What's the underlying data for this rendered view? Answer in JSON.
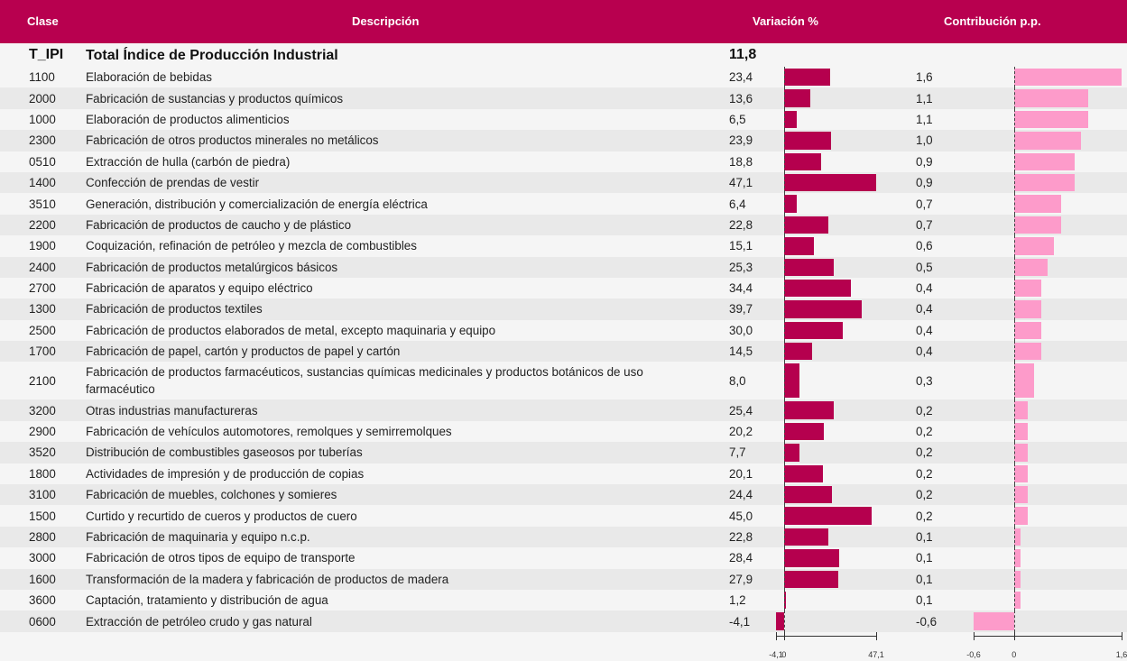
{
  "header": {
    "clase": "Clase",
    "descripcion": "Descripción",
    "variacion": "Variación %",
    "contribucion": "Contribución p.p."
  },
  "total": {
    "clase": "T_IPI",
    "descripcion": "Total Índice de Producción Industrial",
    "variacion": {
      "value": 11.8,
      "label": "11,8"
    }
  },
  "table": {
    "rows": [
      [
        "1100",
        "Elaboración de bebidas",
        {
          "value": 23.4,
          "label": "23,4"
        },
        {
          "value": 1.6,
          "label": "1,6"
        }
      ],
      [
        "2000",
        "Fabricación de sustancias y productos químicos",
        {
          "value": 13.6,
          "label": "13,6"
        },
        {
          "value": 1.1,
          "label": "1,1"
        }
      ],
      [
        "1000",
        "Elaboración de productos alimenticios",
        {
          "value": 6.5,
          "label": "6,5"
        },
        {
          "value": 1.1,
          "label": "1,1"
        }
      ],
      [
        "2300",
        "Fabricación de otros productos minerales no metálicos",
        {
          "value": 23.9,
          "label": "23,9"
        },
        {
          "value": 1.0,
          "label": "1,0"
        }
      ],
      [
        "0510",
        "Extracción de hulla (carbón de piedra)",
        {
          "value": 18.8,
          "label": "18,8"
        },
        {
          "value": 0.9,
          "label": "0,9"
        }
      ],
      [
        "1400",
        "Confección de prendas de vestir",
        {
          "value": 47.1,
          "label": "47,1"
        },
        {
          "value": 0.9,
          "label": "0,9"
        }
      ],
      [
        "3510",
        "Generación, distribución y comercialización de energía eléctrica",
        {
          "value": 6.4,
          "label": "6,4"
        },
        {
          "value": 0.7,
          "label": "0,7"
        }
      ],
      [
        "2200",
        "Fabricación de productos de caucho y de plástico",
        {
          "value": 22.8,
          "label": "22,8"
        },
        {
          "value": 0.7,
          "label": "0,7"
        }
      ],
      [
        "1900",
        "Coquización, refinación de petróleo y mezcla de combustibles",
        {
          "value": 15.1,
          "label": "15,1"
        },
        {
          "value": 0.6,
          "label": "0,6"
        }
      ],
      [
        "2400",
        "Fabricación de productos metalúrgicos básicos",
        {
          "value": 25.3,
          "label": "25,3"
        },
        {
          "value": 0.5,
          "label": "0,5"
        }
      ],
      [
        "2700",
        "Fabricación de aparatos y equipo eléctrico",
        {
          "value": 34.4,
          "label": "34,4"
        },
        {
          "value": 0.4,
          "label": "0,4"
        }
      ],
      [
        "1300",
        "Fabricación de productos textiles",
        {
          "value": 39.7,
          "label": "39,7"
        },
        {
          "value": 0.4,
          "label": "0,4"
        }
      ],
      [
        "2500",
        "Fabricación de productos elaborados de metal, excepto maquinaria y equipo",
        {
          "value": 30.0,
          "label": "30,0"
        },
        {
          "value": 0.4,
          "label": "0,4"
        }
      ],
      [
        "1700",
        "Fabricación de papel, cartón y productos de papel y cartón",
        {
          "value": 14.5,
          "label": "14,5"
        },
        {
          "value": 0.4,
          "label": "0,4"
        }
      ],
      [
        "2100",
        "Fabricación de productos farmacéuticos, sustancias químicas medicinales y productos botánicos de uso farmacéutico",
        {
          "value": 8.0,
          "label": "8,0"
        },
        {
          "value": 0.3,
          "label": "0,3"
        }
      ],
      [
        "3200",
        "Otras industrias manufactureras",
        {
          "value": 25.4,
          "label": "25,4"
        },
        {
          "value": 0.2,
          "label": "0,2"
        }
      ],
      [
        "2900",
        "Fabricación de vehículos automotores, remolques y semirremolques",
        {
          "value": 20.2,
          "label": "20,2"
        },
        {
          "value": 0.2,
          "label": "0,2"
        }
      ],
      [
        "3520",
        "Distribución de combustibles gaseosos por tuberías",
        {
          "value": 7.7,
          "label": "7,7"
        },
        {
          "value": 0.2,
          "label": "0,2"
        }
      ],
      [
        "1800",
        "Actividades de impresión y de producción de copias",
        {
          "value": 20.1,
          "label": "20,1"
        },
        {
          "value": 0.2,
          "label": "0,2"
        }
      ],
      [
        "3100",
        "Fabricación de muebles, colchones y somieres",
        {
          "value": 24.4,
          "label": "24,4"
        },
        {
          "value": 0.2,
          "label": "0,2"
        }
      ],
      [
        "1500",
        "Curtido y recurtido de cueros y productos de cuero",
        {
          "value": 45.0,
          "label": "45,0"
        },
        {
          "value": 0.2,
          "label": "0,2"
        }
      ],
      [
        "2800",
        "Fabricación de maquinaria y equipo n.c.p.",
        {
          "value": 22.8,
          "label": "22,8"
        },
        {
          "value": 0.1,
          "label": "0,1"
        }
      ],
      [
        "3000",
        "Fabricación de otros tipos de equipo de transporte",
        {
          "value": 28.4,
          "label": "28,4"
        },
        {
          "value": 0.1,
          "label": "0,1"
        }
      ],
      [
        "1600",
        "Transformación de la madera y fabricación de productos de madera",
        {
          "value": 27.9,
          "label": "27,9"
        },
        {
          "value": 0.1,
          "label": "0,1"
        }
      ],
      [
        "3600",
        "Captación, tratamiento y distribución de agua",
        {
          "value": 1.2,
          "label": "1,2"
        },
        {
          "value": 0.1,
          "label": "0,1"
        }
      ],
      [
        "0600",
        "Extracción de petróleo crudo y gas natural",
        {
          "value": -4.1,
          "label": "-4,1"
        },
        {
          "value": -0.6,
          "label": "-0,6"
        }
      ]
    ]
  },
  "var_axis": {
    "lim": [
      -4.1,
      47.1
    ],
    "ticks": [
      {
        "value": -4.1,
        "label": "-4,1"
      },
      0,
      {
        "value": 47.1,
        "label": "47,1"
      }
    ],
    "color": "#b5004e"
  },
  "cont_axis": {
    "lim": [
      -0.6,
      1.6
    ],
    "ticks": [
      {
        "value": -0.6,
        "label": "-0,6"
      },
      0,
      {
        "value": 1.6,
        "label": "1,6"
      }
    ],
    "color": "#fd9bca"
  }
}
